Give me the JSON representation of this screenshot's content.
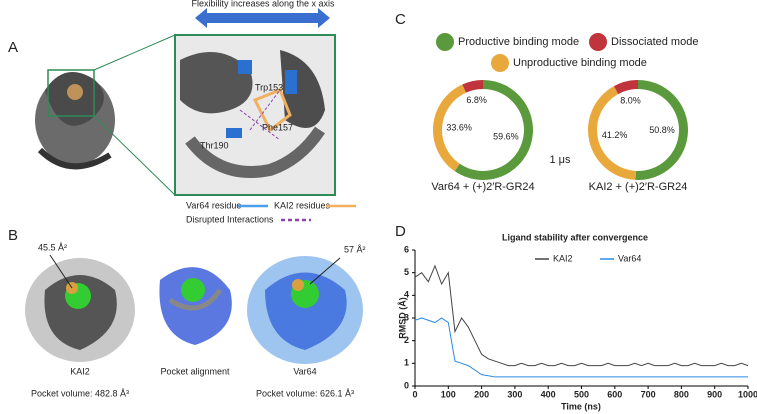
{
  "panel_a": {
    "label": "A",
    "arrow_label": "Flexibility increases along the x axis",
    "residues": [
      "Trp153",
      "Thr190",
      "Phe157"
    ],
    "legend": [
      {
        "name": "Var64 residue",
        "color": "#4a9fe8"
      },
      {
        "name": "KAI2 residues",
        "color": "#f0b060"
      },
      {
        "name": "Disrupted Interactions",
        "color": "#8e44ad"
      }
    ]
  },
  "panel_b": {
    "label": "B",
    "items": [
      {
        "name": "KAI2",
        "area": "45.5 Å²",
        "volume": "Pocket volume: 482.8 Å³"
      },
      {
        "name": "Pocket alignment"
      },
      {
        "name": "Var64",
        "area": "57 Å²",
        "volume": "Pocket volume: 626.1 Å³"
      }
    ]
  },
  "panel_c": {
    "label": "C",
    "center_label": "1 μs",
    "legend": [
      {
        "name": "Productive binding mode",
        "color": "#5a9a3c"
      },
      {
        "name": "Unproductive binding mode",
        "color": "#e8a83c"
      },
      {
        "name": "Dissociated mode",
        "color": "#c0343c"
      }
    ]
  },
  "panel_d": {
    "label": "D"
  },
  "chart_data": [
    {
      "type": "pie",
      "title": "Var64 + (+)2′R-GR24",
      "values": [
        59.6,
        33.6,
        6.8
      ],
      "value_labels": [
        "59.6%",
        "33.6%",
        "6.8%"
      ]
    },
    {
      "type": "pie",
      "title": "KAI2 + (+)2′R-GR24",
      "values": [
        50.8,
        41.2,
        8.0
      ],
      "value_labels": [
        "50.8%",
        "41.2%",
        "8.0%"
      ]
    },
    {
      "type": "line",
      "title": "Ligand stability after convergence",
      "xlabel": "Time (ns)",
      "ylabel": "RMSD (Å)",
      "xlim": [
        0,
        1000
      ],
      "xticks": [
        0,
        100,
        200,
        300,
        400,
        500,
        600,
        700,
        800,
        900,
        1000
      ],
      "ylim": [
        0,
        6
      ],
      "yticks": [
        0,
        1,
        2,
        3,
        4,
        5,
        6
      ],
      "legend": "top",
      "x": [
        0,
        20,
        40,
        60,
        80,
        100,
        120,
        140,
        160,
        180,
        200,
        220,
        240,
        260,
        280,
        300,
        320,
        340,
        360,
        380,
        400,
        420,
        440,
        460,
        480,
        500,
        520,
        540,
        560,
        580,
        600,
        620,
        640,
        660,
        680,
        700,
        720,
        740,
        760,
        780,
        800,
        820,
        840,
        860,
        880,
        900,
        920,
        940,
        960,
        980,
        1000
      ],
      "series": [
        {
          "name": "KAI2",
          "color": "#444444",
          "values": [
            4.8,
            5.0,
            4.6,
            5.3,
            4.5,
            5.0,
            2.4,
            3.0,
            2.6,
            2.0,
            1.4,
            1.2,
            1.1,
            1.0,
            0.9,
            0.9,
            1.0,
            0.9,
            0.9,
            1.0,
            0.9,
            0.9,
            1.0,
            0.9,
            0.9,
            1.0,
            0.9,
            0.9,
            0.9,
            1.0,
            0.9,
            0.9,
            0.9,
            1.0,
            0.9,
            1.0,
            0.9,
            0.9,
            0.9,
            1.0,
            0.9,
            0.9,
            1.0,
            0.9,
            0.9,
            0.9,
            1.0,
            0.9,
            0.9,
            1.0,
            0.9
          ]
        },
        {
          "name": "Var64",
          "color": "#2a8ae0",
          "values": [
            2.9,
            3.0,
            2.9,
            2.8,
            3.0,
            2.8,
            1.1,
            1.0,
            0.9,
            0.7,
            0.5,
            0.45,
            0.4,
            0.4,
            0.4,
            0.4,
            0.4,
            0.4,
            0.4,
            0.4,
            0.4,
            0.4,
            0.4,
            0.4,
            0.4,
            0.4,
            0.4,
            0.4,
            0.4,
            0.4,
            0.4,
            0.4,
            0.4,
            0.4,
            0.4,
            0.4,
            0.4,
            0.4,
            0.4,
            0.4,
            0.4,
            0.4,
            0.4,
            0.4,
            0.4,
            0.4,
            0.4,
            0.4,
            0.4,
            0.4,
            0.4
          ]
        }
      ]
    }
  ]
}
